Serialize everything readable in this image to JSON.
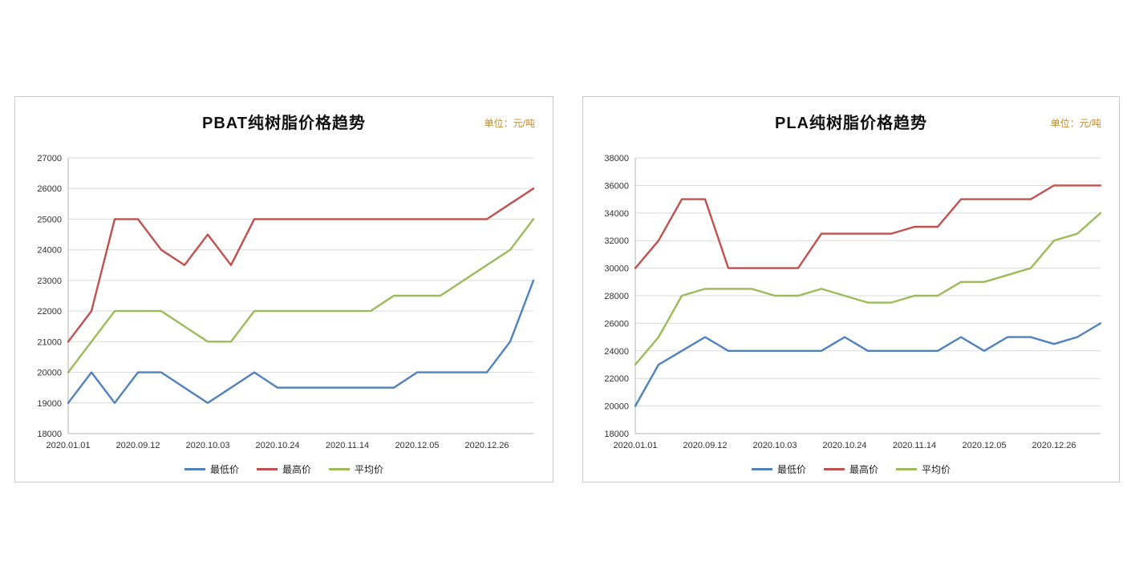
{
  "unit_color": "#BE8C3C",
  "chart_data": [
    {
      "type": "line",
      "title": "PBAT纯树脂价格趋势",
      "unit_label": "单位：元/吨",
      "ylim": [
        18000,
        27000
      ],
      "yticks": [
        18000,
        19000,
        20000,
        21000,
        22000,
        23000,
        24000,
        25000,
        26000,
        27000
      ],
      "n_points": 21,
      "grid": true,
      "legend_position": "bottom",
      "x_labels": [
        {
          "index": 0,
          "label": "2020.01.01"
        },
        {
          "index": 3,
          "label": "2020.09.12"
        },
        {
          "index": 6,
          "label": "2020.10.03"
        },
        {
          "index": 9,
          "label": "2020.10.24"
        },
        {
          "index": 12,
          "label": "2020.11.14"
        },
        {
          "index": 15,
          "label": "2020.12.05"
        },
        {
          "index": 18,
          "label": "2020.12.26"
        }
      ],
      "series": [
        {
          "key": "min",
          "name": "最低价",
          "color": "#4F81BD",
          "values": [
            19000,
            20000,
            19000,
            20000,
            20000,
            19500,
            19000,
            19500,
            20000,
            19500,
            19500,
            19500,
            19500,
            19500,
            19500,
            20000,
            20000,
            20000,
            20000,
            21000,
            23000
          ]
        },
        {
          "key": "max",
          "name": "最高价",
          "color": "#C0504D",
          "values": [
            21000,
            22000,
            25000,
            25000,
            24000,
            23500,
            24500,
            23500,
            25000,
            25000,
            25000,
            25000,
            25000,
            25000,
            25000,
            25000,
            25000,
            25000,
            25000,
            25500,
            26000
          ]
        },
        {
          "key": "avg",
          "name": "平均价",
          "color": "#9BBB59",
          "values": [
            20000,
            21000,
            22000,
            22000,
            22000,
            21500,
            21000,
            21000,
            22000,
            22000,
            22000,
            22000,
            22000,
            22000,
            22500,
            22500,
            22500,
            23000,
            23500,
            24000,
            25000
          ]
        }
      ]
    },
    {
      "type": "line",
      "title": "PLA纯树脂价格趋势",
      "unit_label": "单位：元/吨",
      "ylim": [
        18000,
        38000
      ],
      "yticks": [
        18000,
        20000,
        22000,
        24000,
        26000,
        28000,
        30000,
        32000,
        34000,
        36000,
        38000
      ],
      "n_points": 21,
      "grid": true,
      "legend_position": "bottom",
      "x_labels": [
        {
          "index": 0,
          "label": "2020.01.01"
        },
        {
          "index": 3,
          "label": "2020.09.12"
        },
        {
          "index": 6,
          "label": "2020.10.03"
        },
        {
          "index": 9,
          "label": "2020.10.24"
        },
        {
          "index": 12,
          "label": "2020.11.14"
        },
        {
          "index": 15,
          "label": "2020.12.05"
        },
        {
          "index": 18,
          "label": "2020.12.26"
        }
      ],
      "series": [
        {
          "key": "min",
          "name": "最低价",
          "color": "#4F81BD",
          "values": [
            20000,
            23000,
            24000,
            25000,
            24000,
            24000,
            24000,
            24000,
            24000,
            25000,
            24000,
            24000,
            24000,
            24000,
            25000,
            24000,
            25000,
            25000,
            24500,
            25000,
            26000
          ]
        },
        {
          "key": "max",
          "name": "最高价",
          "color": "#C0504D",
          "values": [
            30000,
            32000,
            35000,
            35000,
            30000,
            30000,
            30000,
            30000,
            32500,
            32500,
            32500,
            32500,
            33000,
            33000,
            35000,
            35000,
            35000,
            35000,
            36000,
            36000,
            36000
          ]
        },
        {
          "key": "avg",
          "name": "平均价",
          "color": "#9BBB59",
          "values": [
            23000,
            25000,
            28000,
            28500,
            28500,
            28500,
            28000,
            28000,
            28500,
            28000,
            27500,
            27500,
            28000,
            28000,
            29000,
            29000,
            29500,
            30000,
            32000,
            32500,
            34000
          ]
        }
      ]
    }
  ]
}
